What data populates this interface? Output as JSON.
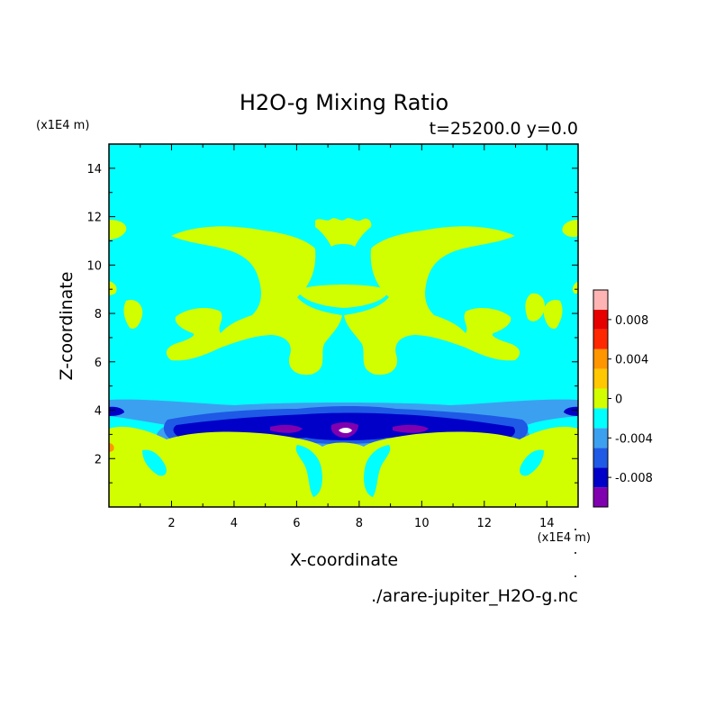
{
  "chart_data": {
    "type": "contour",
    "title": "H2O-g Mixing Ratio",
    "subtitle": "t=25200.0 y=0.0",
    "xlabel": "X-coordinate",
    "ylabel": "Z-coordinate",
    "x_unit": "(x1E4 m)",
    "y_unit": "(x1E4 m)",
    "source_file": "./arare-jupiter_H2O-g.nc",
    "xlim": [
      0,
      15
    ],
    "ylim": [
      0,
      15
    ],
    "x_ticks": [
      2,
      4,
      6,
      8,
      10,
      12,
      14
    ],
    "y_ticks": [
      2,
      4,
      6,
      8,
      10,
      12,
      14
    ],
    "colorbar": {
      "levels": [
        -0.01,
        -0.008,
        -0.006,
        -0.004,
        -0.002,
        0,
        0.002,
        0.004,
        0.006,
        0.008,
        0.01
      ],
      "colors": [
        "#8000b0",
        "#0000c8",
        "#1e5ae6",
        "#3ca0f0",
        "#00ffff",
        "#d2ff00",
        "#ffc800",
        "#ff9600",
        "#ff2800",
        "#e60000",
        "#ffb4b4"
      ],
      "tick_labels": [
        "0.008",
        "0.004",
        "0",
        "-0.004",
        "-0.008"
      ]
    },
    "background_color": "#00ffff",
    "positive_color": "#d2ff00"
  }
}
